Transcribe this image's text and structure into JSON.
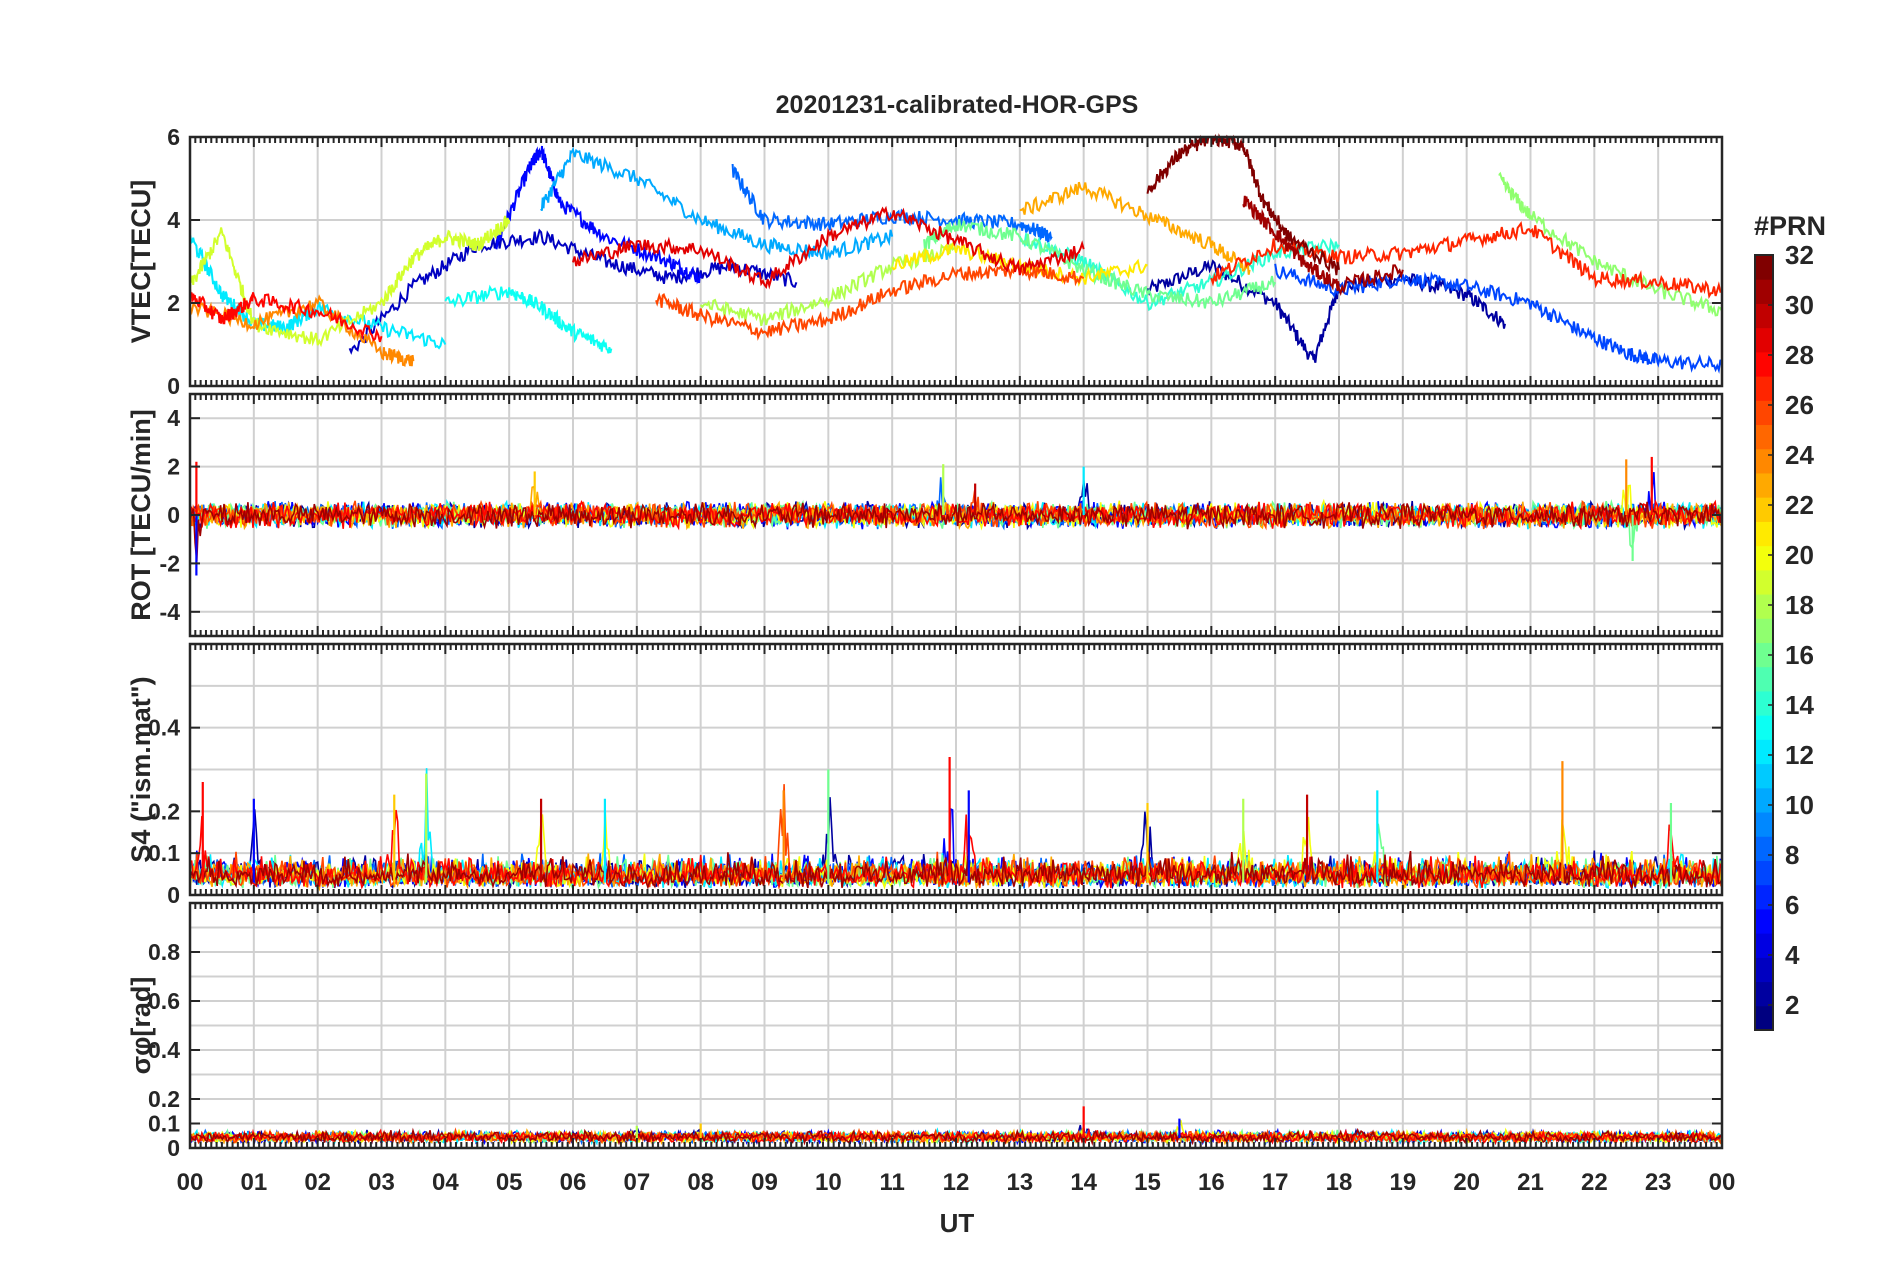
{
  "figure": {
    "title": "20201231-calibrated-HOR-GPS",
    "x_axis_label": "UT",
    "x_tick_labels": [
      "00",
      "01",
      "02",
      "03",
      "04",
      "05",
      "06",
      "07",
      "08",
      "09",
      "10",
      "11",
      "12",
      "13",
      "14",
      "15",
      "16",
      "17",
      "18",
      "19",
      "20",
      "21",
      "22",
      "23",
      "00"
    ]
  },
  "colorbar": {
    "title": "#PRN",
    "tick_labels": [
      "2",
      "4",
      "6",
      "8",
      "10",
      "12",
      "14",
      "16",
      "18",
      "20",
      "22",
      "24",
      "26",
      "28",
      "30",
      "32"
    ],
    "range": [
      1,
      32
    ],
    "colormap": "jet",
    "colors": [
      "#00007f",
      "#0000ff",
      "#007fff",
      "#00ffff",
      "#7fff7f",
      "#ffff00",
      "#ff7f00",
      "#ff0000",
      "#7f0000"
    ]
  },
  "chart_data": [
    {
      "type": "line",
      "panel": "VTEC",
      "ylabel": "VTEC[TECU]",
      "ylim": [
        0,
        6
      ],
      "yticks": [
        "0",
        "2",
        "4",
        "6"
      ],
      "xlim": [
        0,
        24
      ],
      "grid": true,
      "series": [
        {
          "prn": 2,
          "x": [
            15.0,
            16.0,
            17.0,
            17.6,
            18.0,
            19.0,
            20.0,
            20.6
          ],
          "y": [
            2.3,
            2.9,
            2.0,
            0.6,
            2.4,
            2.6,
            2.2,
            1.5
          ]
        },
        {
          "prn": 3,
          "x": [
            2.5,
            3.5,
            4.5,
            5.5,
            6.5,
            7.5,
            8.5,
            9.5
          ],
          "y": [
            0.8,
            2.4,
            3.4,
            3.6,
            3.0,
            2.6,
            2.9,
            2.5
          ]
        },
        {
          "prn": 5,
          "x": [
            4.8,
            5.3,
            5.5,
            5.8,
            6.5,
            7.5,
            8.0
          ],
          "y": [
            3.4,
            5.2,
            5.7,
            4.4,
            3.6,
            3.0,
            2.6
          ]
        },
        {
          "prn": 7,
          "x": [
            17.0,
            18.0,
            19.0,
            20.0,
            21.0,
            21.8,
            22.5,
            23.0,
            24.0
          ],
          "y": [
            2.8,
            2.3,
            2.6,
            2.4,
            2.0,
            1.3,
            0.8,
            0.6,
            0.5
          ]
        },
        {
          "prn": 8,
          "x": [
            8.5,
            9.0,
            10.0,
            11.0,
            12.0,
            13.0,
            13.5
          ],
          "y": [
            5.2,
            4.0,
            3.9,
            4.1,
            4.0,
            3.9,
            3.6
          ]
        },
        {
          "prn": 10,
          "x": [
            5.5,
            6.0,
            7.0,
            8.0,
            9.0,
            10.0,
            11.0
          ],
          "y": [
            4.3,
            5.6,
            5.0,
            4.0,
            3.4,
            3.2,
            3.6
          ]
        },
        {
          "prn": 12,
          "x": [
            0.0,
            0.5,
            1.0,
            1.5,
            2.0,
            3.0,
            4.0
          ],
          "y": [
            3.6,
            2.2,
            1.5,
            1.4,
            1.9,
            1.4,
            1.0
          ]
        },
        {
          "prn": 13,
          "x": [
            4.0,
            5.0,
            5.5,
            6.0,
            6.6
          ],
          "y": [
            2.0,
            2.3,
            1.9,
            1.3,
            0.9
          ]
        },
        {
          "prn": 14,
          "x": [
            13.0,
            14.0,
            15.0,
            16.0,
            17.0,
            18.0
          ],
          "y": [
            3.6,
            3.0,
            2.0,
            2.5,
            3.2,
            3.4
          ]
        },
        {
          "prn": 16,
          "x": [
            11.5,
            12.0,
            13.0,
            14.0,
            15.0,
            16.0,
            17.0
          ],
          "y": [
            3.4,
            3.9,
            3.6,
            2.8,
            2.2,
            2.0,
            2.5
          ]
        },
        {
          "prn": 17,
          "x": [
            20.5,
            21.0,
            22.0,
            23.0,
            24.0
          ],
          "y": [
            5.0,
            4.1,
            3.0,
            2.3,
            1.8
          ]
        },
        {
          "prn": 18,
          "x": [
            8.0,
            9.0,
            10.0,
            11.0,
            12.0
          ],
          "y": [
            2.0,
            1.6,
            2.1,
            2.9,
            3.3
          ]
        },
        {
          "prn": 19,
          "x": [
            0.0,
            0.5,
            1.0,
            2.0,
            3.0,
            3.5,
            4.0,
            4.5,
            5.0
          ],
          "y": [
            2.4,
            3.7,
            1.5,
            1.1,
            2.0,
            3.1,
            3.6,
            3.4,
            4.0
          ]
        },
        {
          "prn": 21,
          "x": [
            11.0,
            12.0,
            13.0,
            14.0,
            15.0
          ],
          "y": [
            2.9,
            3.3,
            2.9,
            2.6,
            2.9
          ]
        },
        {
          "prn": 23,
          "x": [
            13.0,
            14.0,
            15.0,
            16.0,
            16.6
          ],
          "y": [
            4.2,
            4.8,
            4.1,
            3.4,
            2.8
          ]
        },
        {
          "prn": 24,
          "x": [
            0.0,
            1.0,
            2.0,
            3.0,
            3.5
          ],
          "y": [
            1.9,
            1.5,
            2.0,
            0.8,
            0.6
          ]
        },
        {
          "prn": 26,
          "x": [
            7.3,
            8.0,
            9.0,
            10.0,
            11.0,
            12.0,
            13.0,
            14.0
          ],
          "y": [
            2.1,
            1.7,
            1.3,
            1.6,
            2.3,
            2.7,
            2.8,
            2.6
          ]
        },
        {
          "prn": 27,
          "x": [
            16.0,
            17.0,
            18.0,
            19.0,
            20.0,
            21.0,
            22.0,
            23.0,
            24.0
          ],
          "y": [
            2.6,
            3.4,
            3.1,
            3.2,
            3.5,
            3.8,
            2.6,
            2.5,
            2.3
          ]
        },
        {
          "prn": 28,
          "x": [
            0.0,
            0.5,
            1.0,
            2.0,
            3.0
          ],
          "y": [
            2.2,
            1.6,
            2.1,
            1.8,
            1.2
          ]
        },
        {
          "prn": 29,
          "x": [
            6.0,
            7.0,
            8.0,
            9.0,
            10.0,
            11.0,
            12.0,
            13.0,
            14.0
          ],
          "y": [
            3.0,
            3.4,
            3.3,
            2.5,
            3.6,
            4.2,
            3.5,
            2.8,
            3.3
          ]
        },
        {
          "prn": 31,
          "x": [
            16.5,
            17.0,
            17.5,
            18.0,
            19.0
          ],
          "y": [
            4.5,
            3.7,
            2.9,
            2.4,
            2.8
          ]
        },
        {
          "prn": 32,
          "x": [
            15.0,
            15.5,
            16.0,
            16.5,
            16.8,
            17.2,
            18.0
          ],
          "y": [
            4.7,
            5.6,
            6.0,
            5.8,
            4.5,
            3.6,
            2.8
          ]
        }
      ]
    },
    {
      "type": "line",
      "panel": "ROT",
      "ylabel": "ROT [TECU/min]",
      "ylim": [
        -5,
        5
      ],
      "yticks": [
        "-4",
        "-2",
        "0",
        "2",
        "4"
      ],
      "xlim": [
        0,
        24
      ],
      "grid": true,
      "baseline": 0,
      "spikes": [
        {
          "x": 0.1,
          "y": 2.2
        },
        {
          "x": 0.1,
          "y": -2.5
        },
        {
          "x": 5.4,
          "y": 1.8
        },
        {
          "x": 11.8,
          "y": 2.1
        },
        {
          "x": 12.3,
          "y": 1.3
        },
        {
          "x": 14.0,
          "y": 2.0
        },
        {
          "x": 22.5,
          "y": 2.3
        },
        {
          "x": 22.6,
          "y": -1.9
        },
        {
          "x": 22.9,
          "y": 2.4
        }
      ]
    },
    {
      "type": "line",
      "panel": "S4",
      "ylabel": "S4 (\"ism.mat\")",
      "ylim": [
        0,
        0.6
      ],
      "yticks": [
        "0",
        "0.1",
        "0.2",
        "0.4"
      ],
      "xlim": [
        0,
        24
      ],
      "grid": true,
      "peaks": [
        {
          "x": 0.2,
          "y": 0.27
        },
        {
          "x": 1.0,
          "y": 0.23
        },
        {
          "x": 3.2,
          "y": 0.24
        },
        {
          "x": 3.7,
          "y": 0.29
        },
        {
          "x": 5.5,
          "y": 0.23
        },
        {
          "x": 6.5,
          "y": 0.23
        },
        {
          "x": 9.3,
          "y": 0.25
        },
        {
          "x": 10.0,
          "y": 0.3
        },
        {
          "x": 11.9,
          "y": 0.33
        },
        {
          "x": 12.2,
          "y": 0.25
        },
        {
          "x": 15.0,
          "y": 0.22
        },
        {
          "x": 16.5,
          "y": 0.23
        },
        {
          "x": 17.5,
          "y": 0.24
        },
        {
          "x": 18.6,
          "y": 0.25
        },
        {
          "x": 21.5,
          "y": 0.32
        },
        {
          "x": 23.2,
          "y": 0.22
        }
      ]
    },
    {
      "type": "line",
      "panel": "sigma_phi",
      "ylabel": "σφ[rad]",
      "ylim": [
        0,
        1
      ],
      "yticks": [
        "0",
        "0.1",
        "0.2",
        "0.4",
        "0.6",
        "0.8"
      ],
      "xlim": [
        0,
        24
      ],
      "grid": true,
      "baseline": 0.04,
      "peaks": [
        {
          "x": 14.0,
          "y": 0.17
        },
        {
          "x": 15.5,
          "y": 0.12
        },
        {
          "x": 8.0,
          "y": 0.1
        },
        {
          "x": 7.0,
          "y": 0.09
        }
      ]
    }
  ]
}
